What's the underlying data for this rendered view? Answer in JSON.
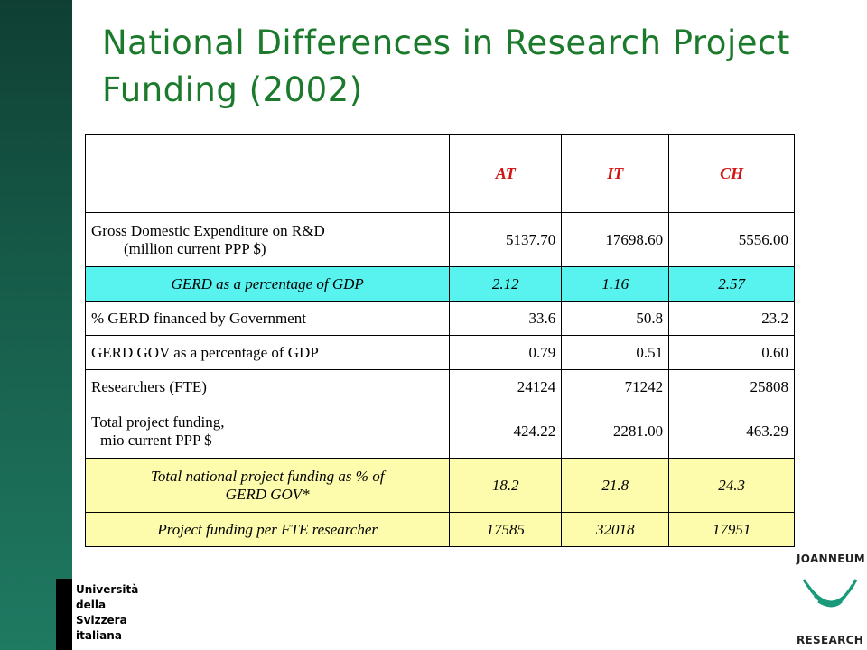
{
  "slide": {
    "title": "National Differences in Research Project Funding (2002)"
  },
  "table": {
    "headers": [
      "",
      "AT",
      "IT",
      "CH"
    ],
    "rows": [
      {
        "label_line1": "Gross Domestic Expenditure on R&D",
        "label_line2": "(million current PPP $)",
        "values": [
          "5137.70",
          "17698.60",
          "5556.00"
        ]
      },
      {
        "label": "GERD as a percentage of GDP",
        "values": [
          "2.12",
          "1.16",
          "2.57"
        ]
      },
      {
        "label": "% GERD financed by Government",
        "values": [
          "33.6",
          "50.8",
          "23.2"
        ]
      },
      {
        "label": "GERD GOV as a percentage of GDP",
        "values": [
          "0.79",
          "0.51",
          "0.60"
        ]
      },
      {
        "label": "Researchers (FTE)",
        "values": [
          "24124",
          "71242",
          "25808"
        ]
      },
      {
        "label_line1": "Total project funding,",
        "label_line2": "mio current PPP $",
        "values": [
          "424.22",
          "2281.00",
          "463.29"
        ]
      },
      {
        "label_line1": "Total national project funding as % of",
        "label_line2": "GERD GOV*",
        "values": [
          "18.2",
          "21.8",
          "24.3"
        ]
      },
      {
        "label": "Project funding per FTE researcher",
        "values": [
          "17585",
          "32018",
          "17951"
        ]
      }
    ],
    "colors": {
      "highlight_cyan": "#58f2ef",
      "highlight_yellow": "#fdfcac",
      "header_red": "#d21414",
      "title_green": "#1b7a2b"
    }
  },
  "logos": {
    "usi_lines": [
      "Università",
      "della",
      "Svizzera",
      "italiana"
    ],
    "joanneum_top": "JOANNEUM",
    "joanneum_bottom": "RESEARCH"
  }
}
